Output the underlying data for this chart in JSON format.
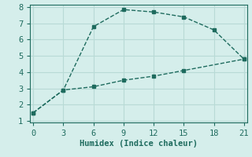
{
  "line1_x": [
    0,
    3,
    6,
    9,
    12,
    15,
    18,
    21
  ],
  "line1_y": [
    1.5,
    2.9,
    6.8,
    7.85,
    7.7,
    7.4,
    6.6,
    4.8
  ],
  "line2_x": [
    0,
    3,
    6,
    9,
    12,
    15,
    21
  ],
  "line2_y": [
    1.5,
    2.9,
    3.1,
    3.5,
    3.75,
    4.1,
    4.8
  ],
  "line_color": "#1e6b5e",
  "xlabel": "Humidex (Indice chaleur)",
  "xlim": [
    0,
    21
  ],
  "ylim": [
    1,
    8
  ],
  "xticks": [
    0,
    3,
    6,
    9,
    12,
    15,
    18,
    21
  ],
  "yticks": [
    1,
    2,
    3,
    4,
    5,
    6,
    7,
    8
  ],
  "bg_color": "#d5eeeb",
  "grid_color": "#b8dad6",
  "font_color": "#1e6b5e",
  "label_fontsize": 7.5,
  "tick_fontsize": 7.5
}
